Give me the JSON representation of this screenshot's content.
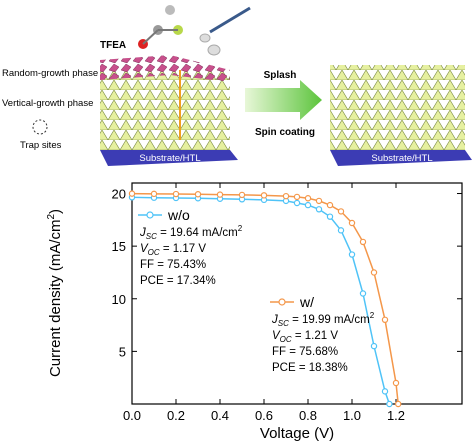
{
  "schematic": {
    "molecule": "TFEA",
    "labels": [
      "Random-growth phase",
      "Vertical-growth phase",
      "Trap sites"
    ],
    "substrate_left": "Substrate/HTL",
    "substrate_right": "Substrate/HTL",
    "arrow_top": "Splash",
    "arrow_bottom": "Spin coating"
  },
  "chart_data": {
    "type": "line",
    "xlabel": "Voltage (V)",
    "ylabel": {
      "text": "Current density (mA/cm",
      "sup": "2",
      "end": ")"
    },
    "xlim": [
      0,
      1.5
    ],
    "ylim": [
      0,
      21
    ],
    "xticks": [
      {
        "value": 0,
        "label": "0.0"
      },
      0.2,
      0.4,
      0.6,
      0.8,
      {
        "value": 1,
        "label": "1.0"
      },
      1.2
    ],
    "yticks": [
      5,
      10,
      15,
      20
    ],
    "series": [
      {
        "name": "w/o",
        "color": "#4fc3f7",
        "x": [
          0,
          0.1,
          0.2,
          0.3,
          0.4,
          0.5,
          0.6,
          0.7,
          0.75,
          0.8,
          0.85,
          0.9,
          0.95,
          1.0,
          1.05,
          1.1,
          1.15,
          1.17
        ],
        "values": [
          19.64,
          19.6,
          19.58,
          19.55,
          19.5,
          19.45,
          19.4,
          19.3,
          19.1,
          18.9,
          18.5,
          17.8,
          16.5,
          14.2,
          10.5,
          5.5,
          1.2,
          0
        ],
        "annotation": [
          {
            "symbol": "J",
            "sub": "SC",
            "rest": " = 19.64 mA/cm",
            "sup": "2"
          },
          {
            "symbol": "V",
            "sub": "OC",
            "rest": " = 1.17 V"
          },
          {
            "rest": "FF = 75.43%"
          },
          {
            "rest": "PCE = 17.34%"
          }
        ]
      },
      {
        "name": "w/",
        "color": "#f4974a",
        "x": [
          0,
          0.1,
          0.2,
          0.3,
          0.4,
          0.5,
          0.6,
          0.7,
          0.75,
          0.8,
          0.85,
          0.9,
          0.95,
          1.0,
          1.05,
          1.1,
          1.15,
          1.2,
          1.21
        ],
        "values": [
          19.99,
          19.97,
          19.95,
          19.93,
          19.9,
          19.87,
          19.83,
          19.75,
          19.68,
          19.55,
          19.3,
          18.9,
          18.3,
          17.2,
          15.4,
          12.5,
          8.0,
          2.0,
          0
        ],
        "annotation": [
          {
            "symbol": "J",
            "sub": "SC",
            "rest": " = 19.99 mA/cm",
            "sup": "2"
          },
          {
            "symbol": "V",
            "sub": "OC",
            "rest": " = 1.21 V"
          },
          {
            "rest": "FF = 75.68%"
          },
          {
            "rest": "PCE = 18.38%"
          }
        ]
      }
    ]
  }
}
